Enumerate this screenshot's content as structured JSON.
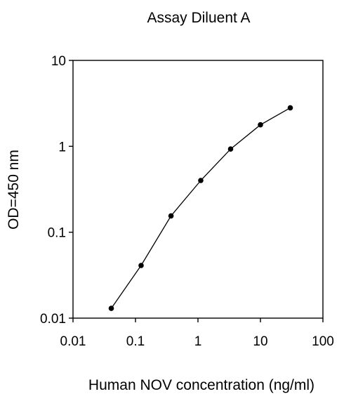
{
  "chart_data": {
    "type": "line",
    "title": "Assay Diluent A",
    "xlabel": "Human NOV concentration (ng/ml)",
    "ylabel": "OD=450 nm",
    "xscale": "log",
    "yscale": "log",
    "xlim": [
      0.01,
      100
    ],
    "ylim": [
      0.01,
      10
    ],
    "x_ticks": [
      0.01,
      0.1,
      1,
      10,
      100
    ],
    "x_tick_labels": [
      "0.01",
      "0.1",
      "1",
      "10",
      "100"
    ],
    "y_ticks": [
      0.01,
      0.1,
      1,
      10
    ],
    "y_tick_labels": [
      "0.01",
      "0.1",
      "1",
      "10"
    ],
    "grid": false,
    "series": [
      {
        "x": [
          0.041,
          0.123,
          0.37,
          1.11,
          3.33,
          10,
          30
        ],
        "y": [
          0.013,
          0.041,
          0.155,
          0.4,
          0.93,
          1.78,
          2.8
        ]
      }
    ],
    "colors": {
      "line": "#000000",
      "marker": "#000000"
    }
  }
}
